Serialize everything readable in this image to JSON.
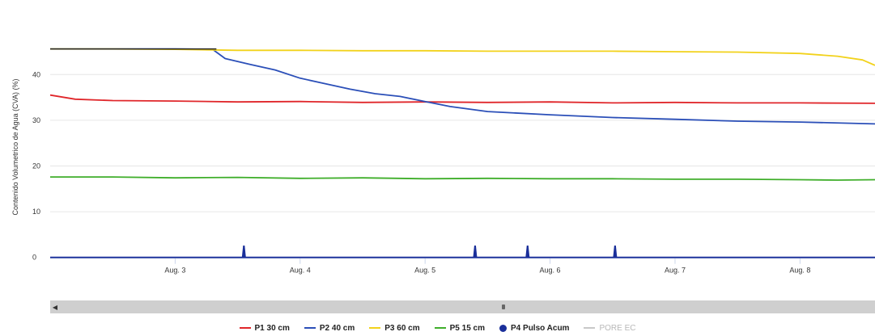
{
  "chart_data": {
    "type": "line",
    "ylabel": "Contenido Volumetrico de Agua (CVA) (%)",
    "y_ticks": [
      "0",
      "10",
      "20",
      "30",
      "40"
    ],
    "ylim": [
      -2,
      51
    ],
    "x_ticks": [
      "Aug. 3",
      "Aug. 4",
      "Aug. 5",
      "Aug. 6",
      "Aug. 7",
      "Aug. 8"
    ],
    "x_tick_positions": [
      3,
      4,
      5,
      6,
      7,
      8
    ],
    "xlim": [
      2.0,
      8.6
    ],
    "grid": true,
    "legend_position": "bottom",
    "series": [
      {
        "name": "P1 30 cm",
        "color": "#e0262a",
        "x": [
          2.0,
          2.2,
          2.5,
          3.0,
          3.5,
          4.0,
          4.5,
          5.0,
          5.5,
          6.0,
          6.5,
          7.0,
          7.5,
          8.0,
          8.6
        ],
        "y": [
          35.5,
          34.6,
          34.3,
          34.2,
          34.0,
          34.1,
          33.9,
          34.0,
          33.9,
          34.0,
          33.8,
          33.9,
          33.8,
          33.8,
          33.7
        ]
      },
      {
        "name": "P2 40 cm",
        "color": "#2b4fb8",
        "x": [
          2.0,
          2.5,
          3.0,
          3.3,
          3.4,
          3.6,
          3.8,
          4.0,
          4.2,
          4.4,
          4.6,
          4.8,
          5.0,
          5.2,
          5.5,
          6.0,
          6.5,
          7.0,
          7.5,
          8.0,
          8.6
        ],
        "y": [
          45.6,
          45.6,
          45.6,
          45.5,
          43.5,
          42.2,
          41.0,
          39.2,
          38.0,
          36.8,
          35.8,
          35.2,
          34.1,
          33.0,
          31.9,
          31.2,
          30.6,
          30.2,
          29.8,
          29.6,
          29.2
        ]
      },
      {
        "name": "P3 60 cm",
        "color": "#f2d21b",
        "x": [
          2.0,
          2.5,
          3.0,
          3.5,
          4.0,
          4.5,
          5.0,
          5.5,
          6.0,
          6.5,
          7.0,
          7.5,
          8.0,
          8.3,
          8.5,
          8.6
        ],
        "y": [
          45.6,
          45.6,
          45.5,
          45.3,
          45.3,
          45.2,
          45.2,
          45.1,
          45.1,
          45.1,
          45.0,
          44.9,
          44.6,
          44.0,
          43.2,
          42.0
        ]
      },
      {
        "name": "P5 15 cm",
        "color": "#3fae2a",
        "x": [
          2.0,
          2.5,
          3.0,
          3.5,
          4.0,
          4.5,
          5.0,
          5.5,
          6.0,
          6.5,
          7.0,
          7.5,
          8.0,
          8.3,
          8.6
        ],
        "y": [
          17.6,
          17.6,
          17.4,
          17.5,
          17.3,
          17.4,
          17.2,
          17.3,
          17.2,
          17.2,
          17.1,
          17.1,
          17.0,
          16.9,
          17.0
        ]
      },
      {
        "name": "P4 Pulso Acum",
        "color": "#1a2f9a",
        "pulses_x": [
          3.55,
          5.4,
          5.82,
          6.52
        ],
        "pulse_height": 2.6,
        "baseline": 0
      }
    ],
    "extra_legend": {
      "name": "PORE EC",
      "color": "#c8c8c8"
    }
  }
}
